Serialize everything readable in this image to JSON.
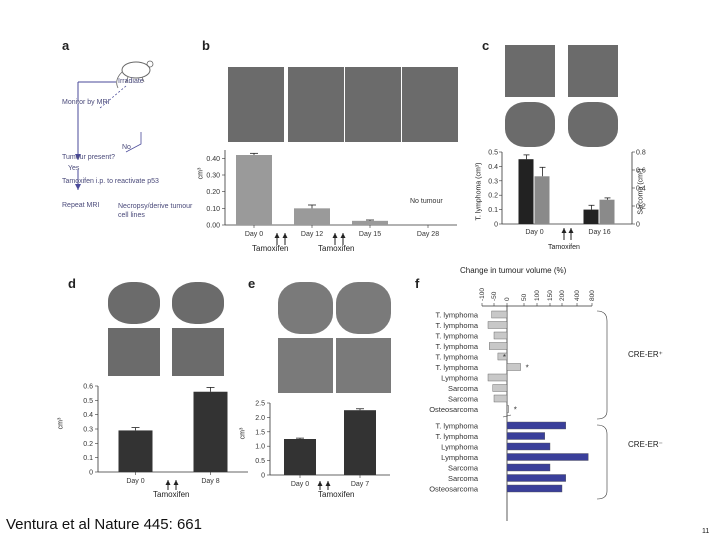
{
  "footer": {
    "citation": "Ventura et al Nature 445: 661",
    "page_number": "11"
  },
  "panel_a": {
    "letter": "a",
    "steps": [
      "Irradiate",
      "Monitor by MRI",
      "No",
      "Tumour present?",
      "Yes",
      "Tamoxifen i.p. to reactivate p53",
      "Repeat MRI",
      "Necropsy/derive tumour cell lines"
    ],
    "mouse_icon": "mouse-icon"
  },
  "panel_b": {
    "letter": "b",
    "unit": "cm³",
    "no_tumour": "No tumour",
    "treatment_labels": [
      "Tamoxifen",
      "Tamoxifen"
    ]
  },
  "panel_c": {
    "letter": "c",
    "ylabel_left": "T. lymphoma (cm³)",
    "ylabel_right": "Sarcoma (cm³)",
    "treatment_label": "Tamoxifen"
  },
  "panel_d": {
    "letter": "d",
    "unit": "cm³",
    "treatment_label": "Tamoxifen"
  },
  "panel_e": {
    "letter": "e",
    "unit": "cm³",
    "treatment_label": "Tamoxifen"
  },
  "panel_f": {
    "letter": "f",
    "title": "Change in tumour volume (%)",
    "group_pos": "CRE-ER⁺",
    "group_neg": "CRE-ER⁻",
    "pos_color": "#c8c8c8",
    "neg_color": "#3a3f9a"
  },
  "chart_data": [
    {
      "id": "b",
      "type": "bar",
      "categories": [
        "Day 0",
        "Day 12",
        "Day 15",
        "Day 28"
      ],
      "values": [
        0.42,
        0.1,
        0.025,
        0.0
      ],
      "errors": [
        0.01,
        0.02,
        0.005,
        0
      ],
      "xlabel": "",
      "ylabel": "cm³",
      "ylim": [
        0,
        0.45
      ],
      "yticks": [
        "0.00",
        "0.10",
        "0.20",
        "0.30",
        "0.40"
      ],
      "ytick_values": [
        0,
        0.1,
        0.2,
        0.3,
        0.4
      ],
      "bar_color": "#9a9a9a"
    },
    {
      "id": "c",
      "type": "bar",
      "categories": [
        "Day 0",
        "Day 16"
      ],
      "series": [
        {
          "values": [
            0.45,
            0.1
          ],
          "errors": [
            0.03,
            0.03
          ],
          "color": "#222222",
          "axis": "left"
        },
        {
          "values": [
            0.53,
            0.27
          ],
          "errors": [
            0.1,
            0.02
          ],
          "color": "#8a8a8a",
          "axis": "right"
        }
      ],
      "ylabel_left": "T. lymphoma (cm³)",
      "ylabel_right": "Sarcoma (cm³)",
      "ylim_left": [
        0,
        0.5
      ],
      "ylim_right": [
        0,
        0.8
      ],
      "yticks_left": [
        "0",
        "0.1",
        "0.2",
        "0.3",
        "0.4",
        "0.5"
      ],
      "yticks_right": [
        "0",
        "0.2",
        "0.4",
        "0.6",
        "0.8"
      ]
    },
    {
      "id": "d",
      "type": "bar",
      "categories": [
        "Day 0",
        "Day 8"
      ],
      "values": [
        0.29,
        0.56
      ],
      "errors": [
        0.02,
        0.03
      ],
      "ylabel": "cm³",
      "ylim": [
        0,
        0.6
      ],
      "yticks": [
        "0",
        "0.1",
        "0.2",
        "0.3",
        "0.4",
        "0.5",
        "0.6"
      ],
      "ytick_values": [
        0,
        0.1,
        0.2,
        0.3,
        0.4,
        0.5,
        0.6
      ],
      "bar_color": "#333333"
    },
    {
      "id": "e",
      "type": "bar",
      "categories": [
        "Day 0",
        "Day 7"
      ],
      "values": [
        1.25,
        2.25
      ],
      "errors": [
        0.03,
        0.05
      ],
      "ylabel": "cm³",
      "ylim": [
        0,
        2.5
      ],
      "yticks": [
        "0",
        "0.5",
        "1.0",
        "1.5",
        "2.0",
        "2.5"
      ],
      "ytick_values": [
        0,
        0.5,
        1.0,
        1.5,
        2.0,
        2.5
      ],
      "bar_color": "#333333"
    },
    {
      "id": "f",
      "type": "bar",
      "orientation": "horizontal",
      "title": "Change in tumour volume (%)",
      "xlim": [
        -100,
        800
      ],
      "xticks": [
        "-100",
        "-50",
        "0",
        "50",
        "100",
        "150",
        "200",
        "400",
        "800"
      ],
      "xtick_values": [
        -100,
        -50,
        0,
        50,
        100,
        150,
        200,
        400,
        800
      ],
      "series": [
        {
          "group": "CRE-ER⁺",
          "categories": [
            "T. lymphoma",
            "T. lymphoma",
            "T. lymphoma",
            "T. lymphoma",
            "T. lymphoma",
            "T. lymphoma",
            "Lymphoma",
            "Sarcoma",
            "Sarcoma",
            "Osteosarcoma"
          ],
          "values": [
            -60,
            -75,
            -50,
            -70,
            -35,
            40,
            -75,
            -55,
            -50,
            5
          ],
          "stars": [
            false,
            false,
            false,
            false,
            true,
            true,
            false,
            false,
            false,
            true
          ]
        },
        {
          "group": "CRE-ER⁻",
          "categories": [
            "T. lymphoma",
            "T. lymphoma",
            "Lymphoma",
            "Lymphoma",
            "Sarcoma",
            "Sarcoma",
            "Osteosarcoma"
          ],
          "values": [
            250,
            130,
            150,
            700,
            150,
            250,
            200
          ]
        }
      ]
    }
  ]
}
